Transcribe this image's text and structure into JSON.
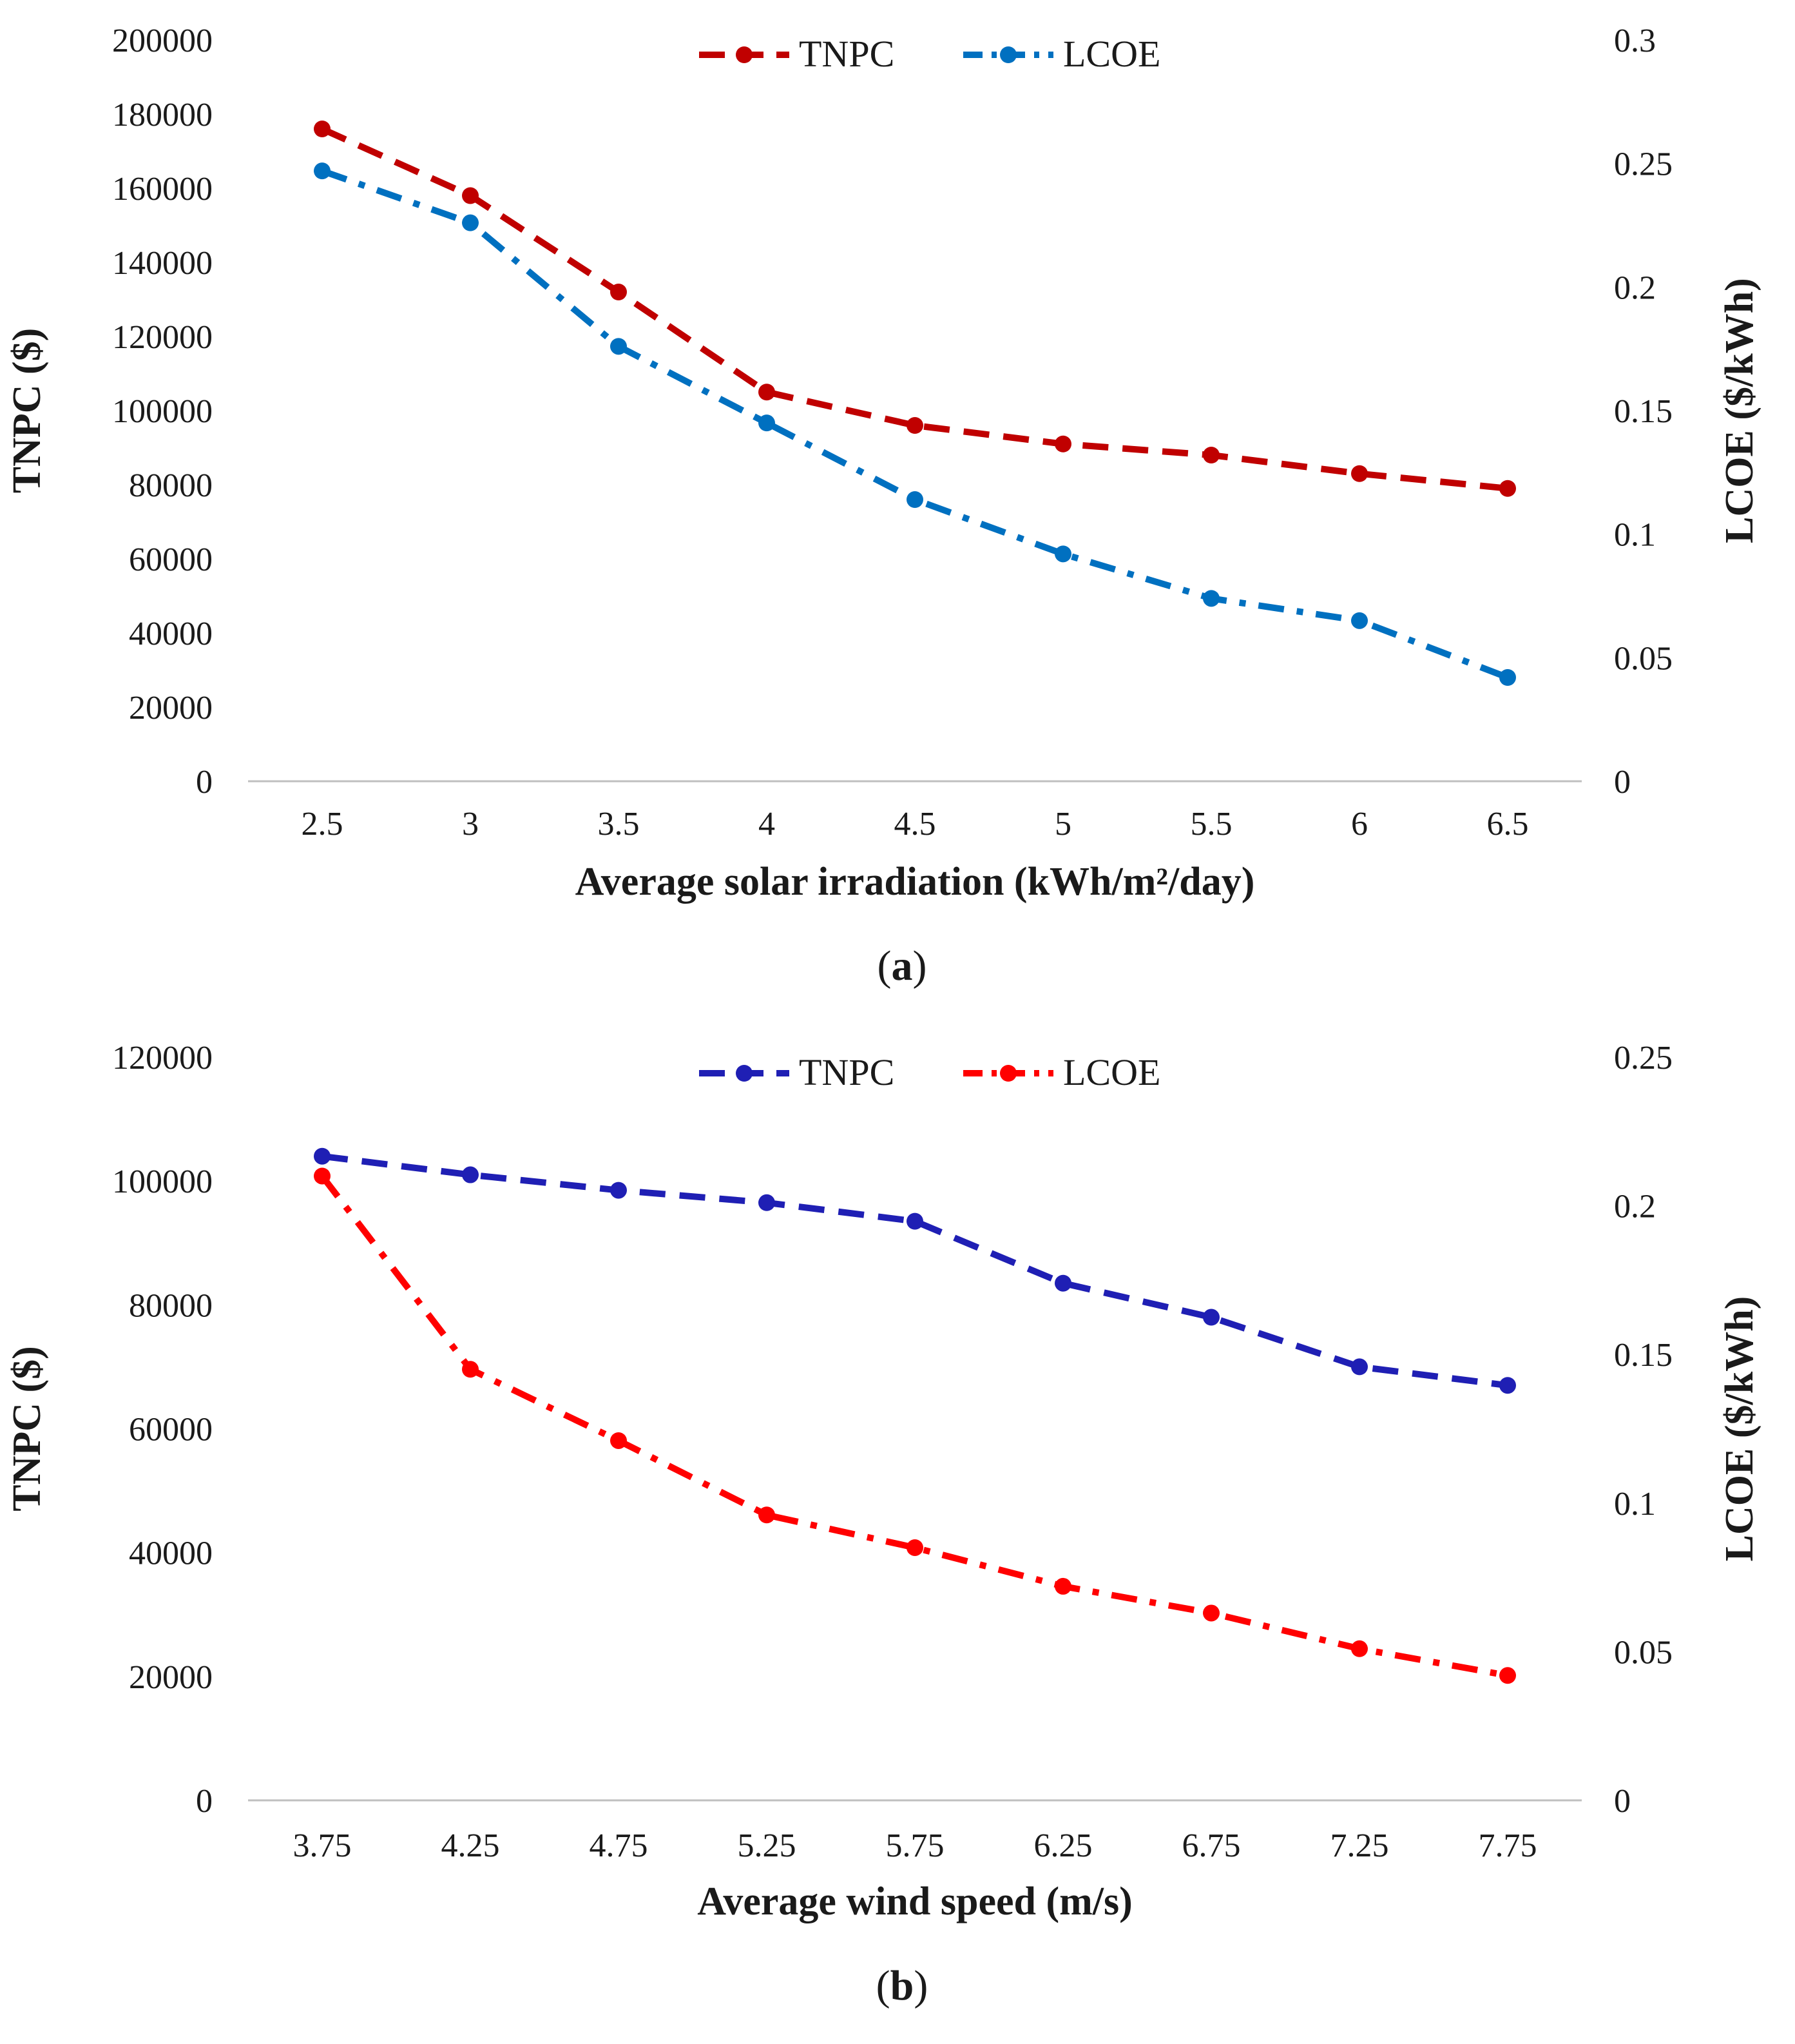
{
  "chart_data": [
    {
      "type": "line",
      "panel_label": "a",
      "caption_open": "(",
      "caption_close": ")",
      "xlabel": "Average solar irradiation (kWh/m²/day)",
      "ylabel": "TNPC ($)",
      "y2label": "LCOE ($/kWh)",
      "categories": [
        "2.5",
        "3",
        "3.5",
        "4",
        "4.5",
        "5",
        "5.5",
        "6",
        "6.5"
      ],
      "ylim": [
        0,
        200000
      ],
      "yticks": [
        "0",
        "20000",
        "40000",
        "60000",
        "80000",
        "100000",
        "120000",
        "140000",
        "160000",
        "180000",
        "200000"
      ],
      "y2lim": [
        0,
        0.3
      ],
      "y2ticks": [
        "0",
        "0.05",
        "0.1",
        "0.15",
        "0.2",
        "0.25",
        "0.3"
      ],
      "legend_position": "top-center",
      "series": [
        {
          "name": "TNPC",
          "axis": "left",
          "color": "#c00000",
          "dash": "dash",
          "values": [
            176000,
            158000,
            132000,
            105000,
            96000,
            91000,
            88000,
            83000,
            79000
          ]
        },
        {
          "name": "LCOE",
          "axis": "right",
          "color": "#0070c0",
          "dash": "dashdot",
          "values": [
            0.247,
            0.226,
            0.176,
            0.145,
            0.114,
            0.092,
            0.074,
            0.065,
            0.042
          ]
        }
      ]
    },
    {
      "type": "line",
      "panel_label": "b",
      "caption_open": "(",
      "caption_close": ")",
      "xlabel": "Average wind speed (m/s)",
      "ylabel": "TNPC ($)",
      "y2label": "LCOE ($/kWh)",
      "categories": [
        "3.75",
        "4.25",
        "4.75",
        "5.25",
        "5.75",
        "6.25",
        "6.75",
        "7.25",
        "7.75"
      ],
      "ylim": [
        0,
        120000
      ],
      "yticks": [
        "0",
        "20000",
        "40000",
        "60000",
        "80000",
        "100000",
        "120000"
      ],
      "y2lim": [
        0,
        0.25
      ],
      "y2ticks": [
        "0",
        "0.05",
        "0.1",
        "0.15",
        "0.2",
        "0.25"
      ],
      "legend_position": "top-center",
      "series": [
        {
          "name": "TNPC",
          "axis": "left",
          "color": "#1f1fb4",
          "dash": "dash",
          "values": [
            104000,
            101000,
            98500,
            96500,
            93500,
            83500,
            78000,
            70000,
            67000
          ]
        },
        {
          "name": "LCOE",
          "axis": "right",
          "color": "#ff0000",
          "dash": "dashdot",
          "values": [
            0.21,
            0.145,
            0.121,
            0.096,
            0.085,
            0.072,
            0.063,
            0.051,
            0.042
          ]
        }
      ]
    }
  ]
}
